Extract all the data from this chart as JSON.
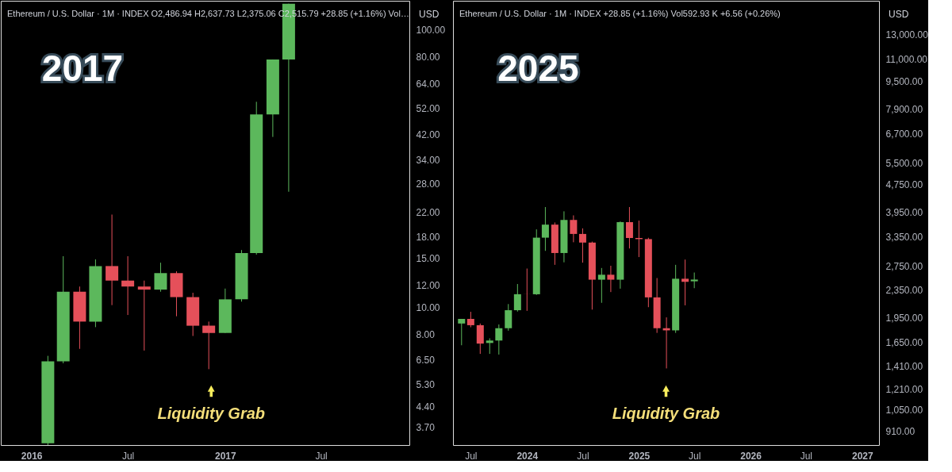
{
  "chart_data": [
    {
      "type": "candlestick",
      "title": "2017",
      "x": [
        "2016-02",
        "2016-03",
        "2016-04",
        "2016-05",
        "2016-06",
        "2016-07",
        "2016-08",
        "2016-09",
        "2016-10",
        "2016-11",
        "2016-12",
        "2017-01",
        "2017-02",
        "2017-03",
        "2017-04",
        "2017-05"
      ],
      "ohlc": [
        [
          3.25,
          6.7,
          3.2,
          6.4
        ],
        [
          6.4,
          15.3,
          6.3,
          11.4
        ],
        [
          11.4,
          11.9,
          7.1,
          8.9
        ],
        [
          8.9,
          14.9,
          8.5,
          14.1
        ],
        [
          14.1,
          21.6,
          10.2,
          12.5
        ],
        [
          12.5,
          15.3,
          9.4,
          11.9
        ],
        [
          11.9,
          12.5,
          7.0,
          11.6
        ],
        [
          11.6,
          14.5,
          11.4,
          13.3
        ],
        [
          13.3,
          13.5,
          9.3,
          10.9
        ],
        [
          10.9,
          11.3,
          7.9,
          8.6
        ],
        [
          8.6,
          8.9,
          6.0,
          8.1
        ],
        [
          8.1,
          11.7,
          8.1,
          10.7
        ],
        [
          10.7,
          16.1,
          10.5,
          15.7
        ],
        [
          15.7,
          55,
          15.5,
          49.5
        ],
        [
          49.5,
          78.1,
          41.1,
          78.1
        ],
        [
          78.1,
          124,
          26.1,
          124
        ]
      ],
      "colors": [
        "#5cb85c",
        "#5cb85c",
        "#e5505a",
        "#5cb85c",
        "#e5505a",
        "#e5505a",
        "#e5505a",
        "#5cb85c",
        "#e5505a",
        "#e5505a",
        "#e5505a",
        "#5cb85c",
        "#5cb85c",
        "#5cb85c",
        "#5cb85c",
        "#5cb85c"
      ],
      "xlim": [
        "2015-11-04",
        "2017-12-15"
      ],
      "xticks": [
        {
          "value": "2016-01",
          "label": "2016"
        },
        {
          "value": "2016-07",
          "label": "Jul"
        },
        {
          "value": "2017-01",
          "label": "2017"
        },
        {
          "value": "2017-07",
          "label": "Jul"
        }
      ],
      "ylim": [
        3.2,
        127
      ],
      "log": true,
      "grid": false,
      "yticks": [
        {
          "value": 3.7,
          "label": "3.70"
        },
        {
          "value": 4.4,
          "label": "4.40"
        },
        {
          "value": 5.3,
          "label": "5.30"
        },
        {
          "value": 6.5,
          "label": "6.50"
        },
        {
          "value": 8,
          "label": "8.00"
        },
        {
          "value": 10,
          "label": "10.00"
        },
        {
          "value": 12,
          "label": "12.00"
        },
        {
          "value": 15,
          "label": "15.00"
        },
        {
          "value": 18,
          "label": "18.00"
        },
        {
          "value": 22,
          "label": "22.00"
        },
        {
          "value": 28,
          "label": "28.00"
        },
        {
          "value": 34,
          "label": "34.00"
        },
        {
          "value": 42,
          "label": "42.00"
        },
        {
          "value": 52,
          "label": "52.00"
        },
        {
          "value": 64,
          "label": "64.00"
        },
        {
          "value": 80,
          "label": "80.00"
        },
        {
          "value": 100,
          "label": "100.00"
        }
      ],
      "annotations": [
        "Ethereum / U.S. Dollar · 1M · INDEX  O2,486.94  H2,637.73  L2,375.06  C2,515.79  +28.85 (+1.16%)  Vol…",
        "USD",
        "Liquidity Grab"
      ]
    },
    {
      "type": "candlestick",
      "title": "2025",
      "x": [
        "2023-06",
        "2023-07",
        "2023-08",
        "2023-09",
        "2023-10",
        "2023-11",
        "2023-12",
        "2024-01",
        "2024-02",
        "2024-03",
        "2024-04",
        "2024-05",
        "2024-06",
        "2024-07",
        "2024-08",
        "2024-09",
        "2024-10",
        "2024-11",
        "2024-12",
        "2025-01",
        "2025-02",
        "2025-03",
        "2025-04",
        "2025-05",
        "2025-06",
        "2025-07"
      ],
      "ohlc": [
        [
          1874,
          1933,
          1620,
          1933
        ],
        [
          1933,
          2027,
          1828,
          1853
        ],
        [
          1853,
          1874,
          1529,
          1638
        ],
        [
          1645,
          1697,
          1529,
          1672
        ],
        [
          1672,
          1862,
          1522,
          1816
        ],
        [
          1816,
          2135,
          1786,
          2049
        ],
        [
          2049,
          2442,
          2030,
          2281
        ],
        [
          2281,
          2709,
          2040,
          2280
        ],
        [
          2280,
          3523,
          2270,
          3332
        ],
        [
          3332,
          4091,
          3050,
          3636
        ],
        [
          3636,
          3689,
          2777,
          3006
        ],
        [
          3006,
          3975,
          2824,
          3752
        ],
        [
          3752,
          3869,
          3231,
          3416
        ],
        [
          3416,
          3546,
          2818,
          3224
        ],
        [
          3224,
          3245,
          2057,
          2514
        ],
        [
          2514,
          2719,
          2153,
          2599
        ],
        [
          2599,
          2760,
          2314,
          2514
        ],
        [
          2514,
          3715,
          2367,
          3697
        ],
        [
          3697,
          4091,
          3099,
          3325
        ],
        [
          3325,
          3736,
          2925,
          3300
        ],
        [
          3300,
          3330,
          2091,
          2233
        ],
        [
          2233,
          2542,
          1760,
          1816
        ],
        [
          1816,
          1953,
          1387,
          1790
        ],
        [
          1790,
          2777,
          1760,
          2530
        ],
        [
          2530,
          2877,
          2117,
          2478
        ],
        [
          2486.94,
          2637.73,
          2375.06,
          2515.79
        ]
      ],
      "colors": [
        "#5cb85c",
        "#e5505a",
        "#e5505a",
        "#5cb85c",
        "#5cb85c",
        "#5cb85c",
        "#5cb85c",
        "#e5505a",
        "#5cb85c",
        "#5cb85c",
        "#e5505a",
        "#5cb85c",
        "#e5505a",
        "#e5505a",
        "#e5505a",
        "#5cb85c",
        "#e5505a",
        "#5cb85c",
        "#e5505a",
        "#e5505a",
        "#e5505a",
        "#e5505a",
        "#e5505a",
        "#5cb85c",
        "#e5505a",
        "#5cb85c"
      ],
      "xlim": [
        "2023-05-04",
        "2027-02-25"
      ],
      "xticks": [
        {
          "value": "2023-07",
          "label": "Jul"
        },
        {
          "value": "2024-01",
          "label": "2024"
        },
        {
          "value": "2024-07",
          "label": "Jul"
        },
        {
          "value": "2025-01",
          "label": "2025"
        },
        {
          "value": "2025-07",
          "label": "Jul"
        },
        {
          "value": "2026-01",
          "label": "2026"
        },
        {
          "value": "2026-07",
          "label": "Jul"
        },
        {
          "value": "2027-01",
          "label": "2027"
        }
      ],
      "ylim": [
        830,
        16300
      ],
      "log": true,
      "grid": false,
      "yticks": [
        {
          "value": 910,
          "label": "910.00"
        },
        {
          "value": 1050,
          "label": "1,050.00"
        },
        {
          "value": 1210,
          "label": "1,210.00"
        },
        {
          "value": 1410,
          "label": "1,410.00"
        },
        {
          "value": 1650,
          "label": "1,650.00"
        },
        {
          "value": 1950,
          "label": "1,950.00"
        },
        {
          "value": 2350,
          "label": "2,350.00"
        },
        {
          "value": 2750,
          "label": "2,750.00"
        },
        {
          "value": 3350,
          "label": "3,350.00"
        },
        {
          "value": 3950,
          "label": "3,950.00"
        },
        {
          "value": 4750,
          "label": "4,750.00"
        },
        {
          "value": 5500,
          "label": "5,500.00"
        },
        {
          "value": 6700,
          "label": "6,700.00"
        },
        {
          "value": 7900,
          "label": "7,900.00"
        },
        {
          "value": 9500,
          "label": "9,500.00"
        },
        {
          "value": 11000,
          "label": "11,000.00"
        },
        {
          "value": 13000,
          "label": "13,000.00"
        }
      ],
      "annotations": [
        "Ethereum / U.S. Dollar · 1M · INDEX  +28.85 (+1.16%)  Vol592.93 K  +6.56 (+0.26%)",
        "USD",
        "Liquidity Grab"
      ]
    }
  ]
}
